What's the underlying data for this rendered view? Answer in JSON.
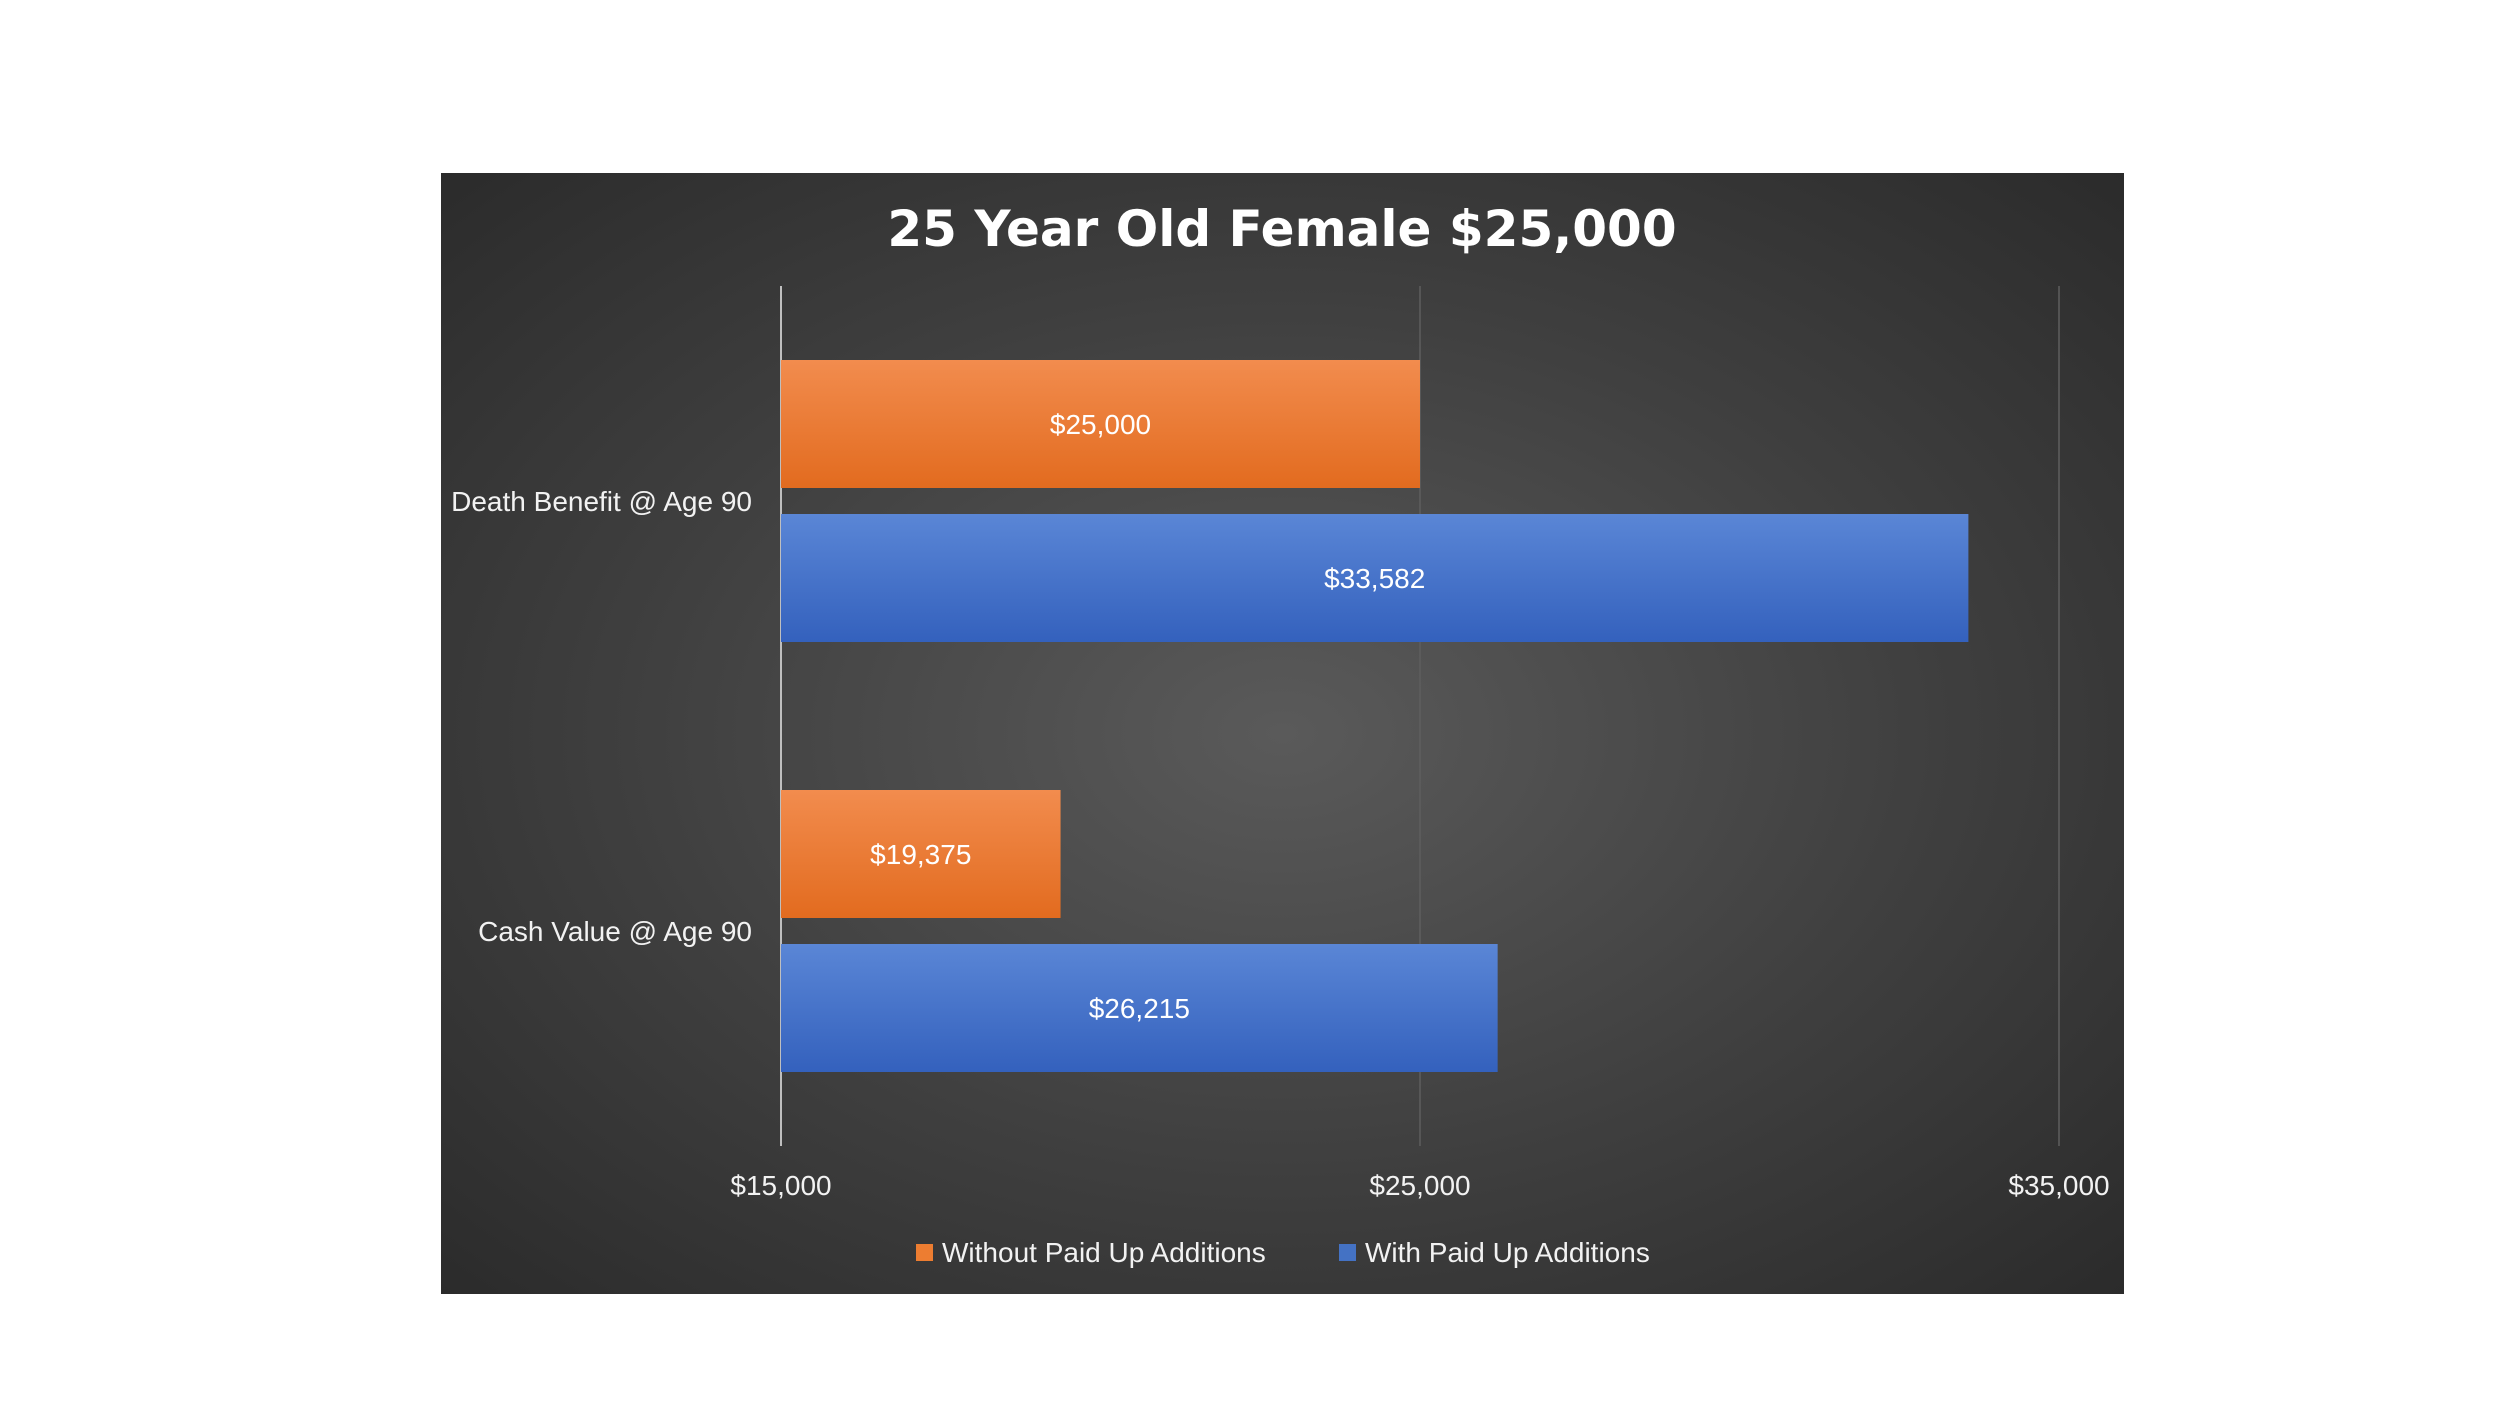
{
  "chart_data": {
    "type": "bar",
    "orientation": "horizontal",
    "title": "25 Year Old Female $25,000",
    "xlabel": "",
    "ylabel": "",
    "categories": [
      "Death Benefit @ Age 90",
      "Cash Value @ Age 90"
    ],
    "series": [
      {
        "name": "Without Paid Up Additions",
        "color": "#ed7d31",
        "values": [
          25000,
          19375
        ],
        "labels": [
          "$25,000",
          "$19,375"
        ]
      },
      {
        "name": "With Paid Up Additions",
        "color": "#4472c4",
        "values": [
          33582,
          26215
        ],
        "labels": [
          "$33,582",
          "$26,215"
        ]
      }
    ],
    "xlim": [
      15000,
      35000
    ],
    "ticks": [
      15000,
      25000,
      35000
    ],
    "tick_labels": [
      "$15,000",
      "$25,000",
      "$35,000"
    ],
    "grid": "vertical",
    "legend_position": "bottom",
    "background": "#404040"
  }
}
